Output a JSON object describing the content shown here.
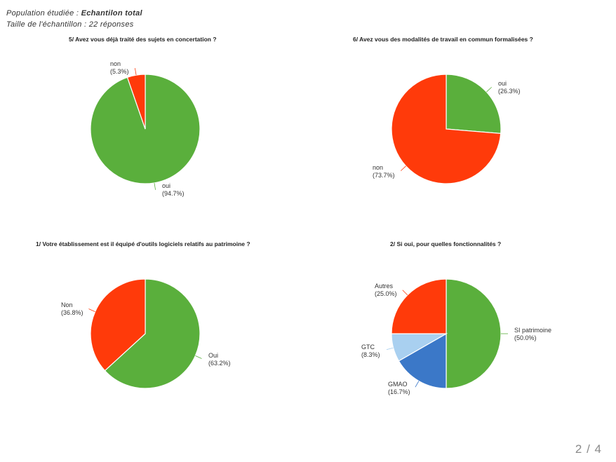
{
  "header": {
    "line1_prefix": "Population étudiée : ",
    "line1_value": "Echantilon total",
    "line2": "Taille de l'échantillon : 22 réponses"
  },
  "page_number": "2 / 4",
  "chart_data": [
    {
      "type": "pie",
      "title": "5/ Avez vous déjà traité des sujets en concertation ?",
      "slices": [
        {
          "label": "oui",
          "pct_text": "(94.7%)",
          "value": 94.7,
          "color": "#5aaf3c"
        },
        {
          "label": "non",
          "pct_text": "(5.3%)",
          "value": 5.3,
          "color": "#ff3a0a"
        }
      ]
    },
    {
      "type": "pie",
      "title": "6/ Avez vous des modalités de travail en commun formalisées ?",
      "slices": [
        {
          "label": "oui",
          "pct_text": "(26.3%)",
          "value": 26.3,
          "color": "#5aaf3c"
        },
        {
          "label": "non",
          "pct_text": "(73.7%)",
          "value": 73.7,
          "color": "#ff3a0a"
        }
      ]
    },
    {
      "type": "pie",
      "title": "1/ Votre établissement est il équipé d'outils logiciels relatifs au patrimoine ?",
      "slices": [
        {
          "label": "Oui",
          "pct_text": "(63.2%)",
          "value": 63.2,
          "color": "#5aaf3c"
        },
        {
          "label": "Non",
          "pct_text": "(36.8%)",
          "value": 36.8,
          "color": "#ff3a0a"
        }
      ]
    },
    {
      "type": "pie",
      "title": "2/ Si oui, pour quelles fonctionnalités ?",
      "slices": [
        {
          "label": "SI patrimoine",
          "pct_text": "(50.0%)",
          "value": 50.0,
          "color": "#5aaf3c"
        },
        {
          "label": "GMAO",
          "pct_text": "(16.7%)",
          "value": 16.7,
          "color": "#3b78c8"
        },
        {
          "label": "GTC",
          "pct_text": "(8.3%)",
          "value": 8.3,
          "color": "#a9d0f0"
        },
        {
          "label": "Autres",
          "pct_text": "(25.0%)",
          "value": 25.0,
          "color": "#ff3a0a"
        }
      ]
    }
  ]
}
